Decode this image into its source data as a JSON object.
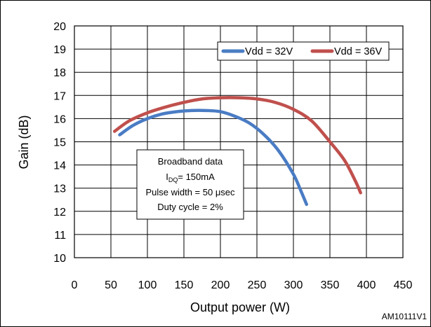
{
  "chart_data": {
    "type": "line",
    "xlabel": "Output power (W)",
    "ylabel": "Gain (dB)",
    "xlim": [
      0,
      450
    ],
    "ylim": [
      10,
      20
    ],
    "x_ticks": [
      "0",
      "50",
      "100",
      "150",
      "200",
      "250",
      "300",
      "350",
      "400",
      "450"
    ],
    "y_ticks": [
      "10",
      "11",
      "12",
      "13",
      "14",
      "15",
      "16",
      "17",
      "18",
      "19",
      "20"
    ],
    "grid": true,
    "legend_position": "top-right",
    "series": [
      {
        "name": "Vdd = 32V",
        "color": "#4a7cc4",
        "x": [
          62,
          80,
          100,
          120,
          140,
          160,
          180,
          200,
          220,
          240,
          260,
          280,
          300,
          310,
          318
        ],
        "y": [
          15.3,
          15.7,
          16.0,
          16.2,
          16.3,
          16.35,
          16.35,
          16.3,
          16.1,
          15.8,
          15.3,
          14.6,
          13.6,
          12.9,
          12.3
        ]
      },
      {
        "name": "Vdd = 36V",
        "color": "#c0504d",
        "x": [
          55,
          75,
          100,
          125,
          150,
          175,
          200,
          225,
          250,
          275,
          300,
          325,
          350,
          370,
          385,
          392
        ],
        "y": [
          15.45,
          15.9,
          16.25,
          16.5,
          16.7,
          16.85,
          16.9,
          16.9,
          16.85,
          16.7,
          16.4,
          15.9,
          15.0,
          14.2,
          13.3,
          12.8
        ]
      }
    ],
    "annotation": {
      "line1": "Broadband data",
      "line2_main": "I",
      "line2_sub": "DQ",
      "line2_rest": "= 150mA",
      "line3": "Pulse width = 50 μsec",
      "line4": "Duty cycle = 2%"
    },
    "figure_id": "AM10111V1"
  }
}
